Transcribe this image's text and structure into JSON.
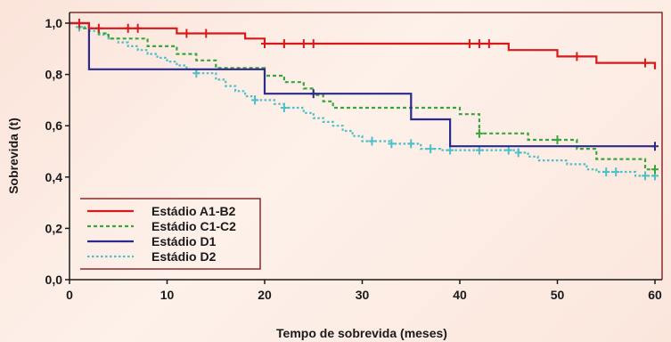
{
  "chart_data": {
    "type": "line",
    "title": "",
    "xlabel": "Tempo de sobrevida (meses)",
    "ylabel": "Sobrevida (t)",
    "xlim": [
      0,
      60
    ],
    "ylim": [
      0,
      1
    ],
    "x_ticks": [
      0,
      10,
      20,
      30,
      40,
      50,
      60
    ],
    "x_tick_labels": [
      "0",
      "10",
      "20",
      "30",
      "40",
      "50",
      "60"
    ],
    "y_ticks": [
      0,
      0.2,
      0.4,
      0.6,
      0.8,
      1.0
    ],
    "y_tick_labels": [
      "0,0",
      "0,2",
      "0,4",
      "0,6",
      "0,8",
      "1,0"
    ],
    "grid": false,
    "legend_position": "bottom-left",
    "series": [
      {
        "name": "Estádio A1-B2",
        "color": "#d7191c",
        "dash": "solid",
        "points": [
          [
            0,
            1.0
          ],
          [
            2,
            1.0
          ],
          [
            2,
            0.98
          ],
          [
            11,
            0.98
          ],
          [
            11,
            0.96
          ],
          [
            18,
            0.96
          ],
          [
            18,
            0.94
          ],
          [
            20,
            0.94
          ],
          [
            20,
            0.92
          ],
          [
            45,
            0.92
          ],
          [
            45,
            0.895
          ],
          [
            50,
            0.895
          ],
          [
            50,
            0.87
          ],
          [
            54,
            0.87
          ],
          [
            54,
            0.845
          ],
          [
            60,
            0.845
          ],
          [
            60,
            0.82
          ]
        ],
        "censor_x": [
          1,
          3,
          6,
          7,
          12,
          14,
          20,
          22,
          24,
          25,
          41,
          42,
          43,
          52,
          59
        ]
      },
      {
        "name": "Estádio C1-C2",
        "color": "#3aa53a",
        "dash": "dashed",
        "points": [
          [
            0,
            1.0
          ],
          [
            1,
            1.0
          ],
          [
            1,
            0.98
          ],
          [
            3,
            0.98
          ],
          [
            3,
            0.96
          ],
          [
            4,
            0.96
          ],
          [
            4,
            0.94
          ],
          [
            8,
            0.94
          ],
          [
            8,
            0.91
          ],
          [
            11,
            0.91
          ],
          [
            11,
            0.88
          ],
          [
            13,
            0.88
          ],
          [
            13,
            0.855
          ],
          [
            15,
            0.855
          ],
          [
            15,
            0.825
          ],
          [
            20,
            0.825
          ],
          [
            20,
            0.795
          ],
          [
            22,
            0.795
          ],
          [
            22,
            0.77
          ],
          [
            24,
            0.77
          ],
          [
            24,
            0.745
          ],
          [
            25,
            0.745
          ],
          [
            25,
            0.72
          ],
          [
            26,
            0.72
          ],
          [
            26,
            0.695
          ],
          [
            27,
            0.695
          ],
          [
            27,
            0.67
          ],
          [
            40,
            0.67
          ],
          [
            40,
            0.645
          ],
          [
            42,
            0.645
          ],
          [
            42,
            0.57
          ],
          [
            47,
            0.57
          ],
          [
            47,
            0.545
          ],
          [
            52,
            0.545
          ],
          [
            52,
            0.51
          ],
          [
            54,
            0.51
          ],
          [
            54,
            0.47
          ],
          [
            59,
            0.47
          ],
          [
            59,
            0.43
          ],
          [
            60,
            0.43
          ]
        ],
        "censor_x": [
          42,
          50,
          60
        ]
      },
      {
        "name": "Estádio D1",
        "color": "#2a2a8c",
        "dash": "solid",
        "points": [
          [
            0,
            1.0
          ],
          [
            2,
            1.0
          ],
          [
            2,
            0.82
          ],
          [
            20,
            0.82
          ],
          [
            20,
            0.725
          ],
          [
            35,
            0.725
          ],
          [
            35,
            0.625
          ],
          [
            39,
            0.625
          ],
          [
            39,
            0.52
          ],
          [
            60,
            0.52
          ]
        ],
        "censor_x": [
          25,
          60
        ]
      },
      {
        "name": "Estádio D2",
        "color": "#4fbfc7",
        "dash": "dotted",
        "points": [
          [
            0,
            1.0
          ],
          [
            1,
            1.0
          ],
          [
            1,
            0.985
          ],
          [
            2,
            0.985
          ],
          [
            2,
            0.97
          ],
          [
            3,
            0.97
          ],
          [
            3,
            0.955
          ],
          [
            4,
            0.955
          ],
          [
            4,
            0.94
          ],
          [
            5,
            0.94
          ],
          [
            5,
            0.925
          ],
          [
            6,
            0.925
          ],
          [
            6,
            0.91
          ],
          [
            7,
            0.91
          ],
          [
            7,
            0.895
          ],
          [
            8,
            0.895
          ],
          [
            8,
            0.88
          ],
          [
            9,
            0.88
          ],
          [
            9,
            0.865
          ],
          [
            10,
            0.865
          ],
          [
            10,
            0.85
          ],
          [
            11,
            0.85
          ],
          [
            11,
            0.835
          ],
          [
            12,
            0.835
          ],
          [
            12,
            0.82
          ],
          [
            13,
            0.82
          ],
          [
            13,
            0.805
          ],
          [
            15,
            0.805
          ],
          [
            15,
            0.78
          ],
          [
            16,
            0.78
          ],
          [
            16,
            0.755
          ],
          [
            17,
            0.755
          ],
          [
            17,
            0.735
          ],
          [
            18,
            0.735
          ],
          [
            18,
            0.715
          ],
          [
            19,
            0.715
          ],
          [
            19,
            0.7
          ],
          [
            21,
            0.7
          ],
          [
            21,
            0.685
          ],
          [
            22,
            0.685
          ],
          [
            22,
            0.67
          ],
          [
            24,
            0.67
          ],
          [
            24,
            0.65
          ],
          [
            25,
            0.65
          ],
          [
            25,
            0.63
          ],
          [
            26,
            0.63
          ],
          [
            26,
            0.615
          ],
          [
            27,
            0.615
          ],
          [
            27,
            0.6
          ],
          [
            28,
            0.6
          ],
          [
            28,
            0.58
          ],
          [
            29,
            0.58
          ],
          [
            29,
            0.56
          ],
          [
            30,
            0.56
          ],
          [
            30,
            0.54
          ],
          [
            33,
            0.54
          ],
          [
            33,
            0.53
          ],
          [
            36,
            0.53
          ],
          [
            36,
            0.51
          ],
          [
            38,
            0.51
          ],
          [
            38,
            0.505
          ],
          [
            46,
            0.505
          ],
          [
            46,
            0.495
          ],
          [
            47,
            0.495
          ],
          [
            47,
            0.48
          ],
          [
            48,
            0.48
          ],
          [
            48,
            0.465
          ],
          [
            51,
            0.465
          ],
          [
            51,
            0.45
          ],
          [
            53,
            0.45
          ],
          [
            53,
            0.43
          ],
          [
            54,
            0.43
          ],
          [
            54,
            0.42
          ],
          [
            58,
            0.42
          ],
          [
            58,
            0.405
          ],
          [
            60,
            0.405
          ]
        ],
        "censor_x": [
          1,
          13,
          19,
          22,
          31,
          33,
          35,
          37,
          39,
          42,
          45,
          46,
          55,
          56,
          59,
          60
        ]
      }
    ]
  }
}
